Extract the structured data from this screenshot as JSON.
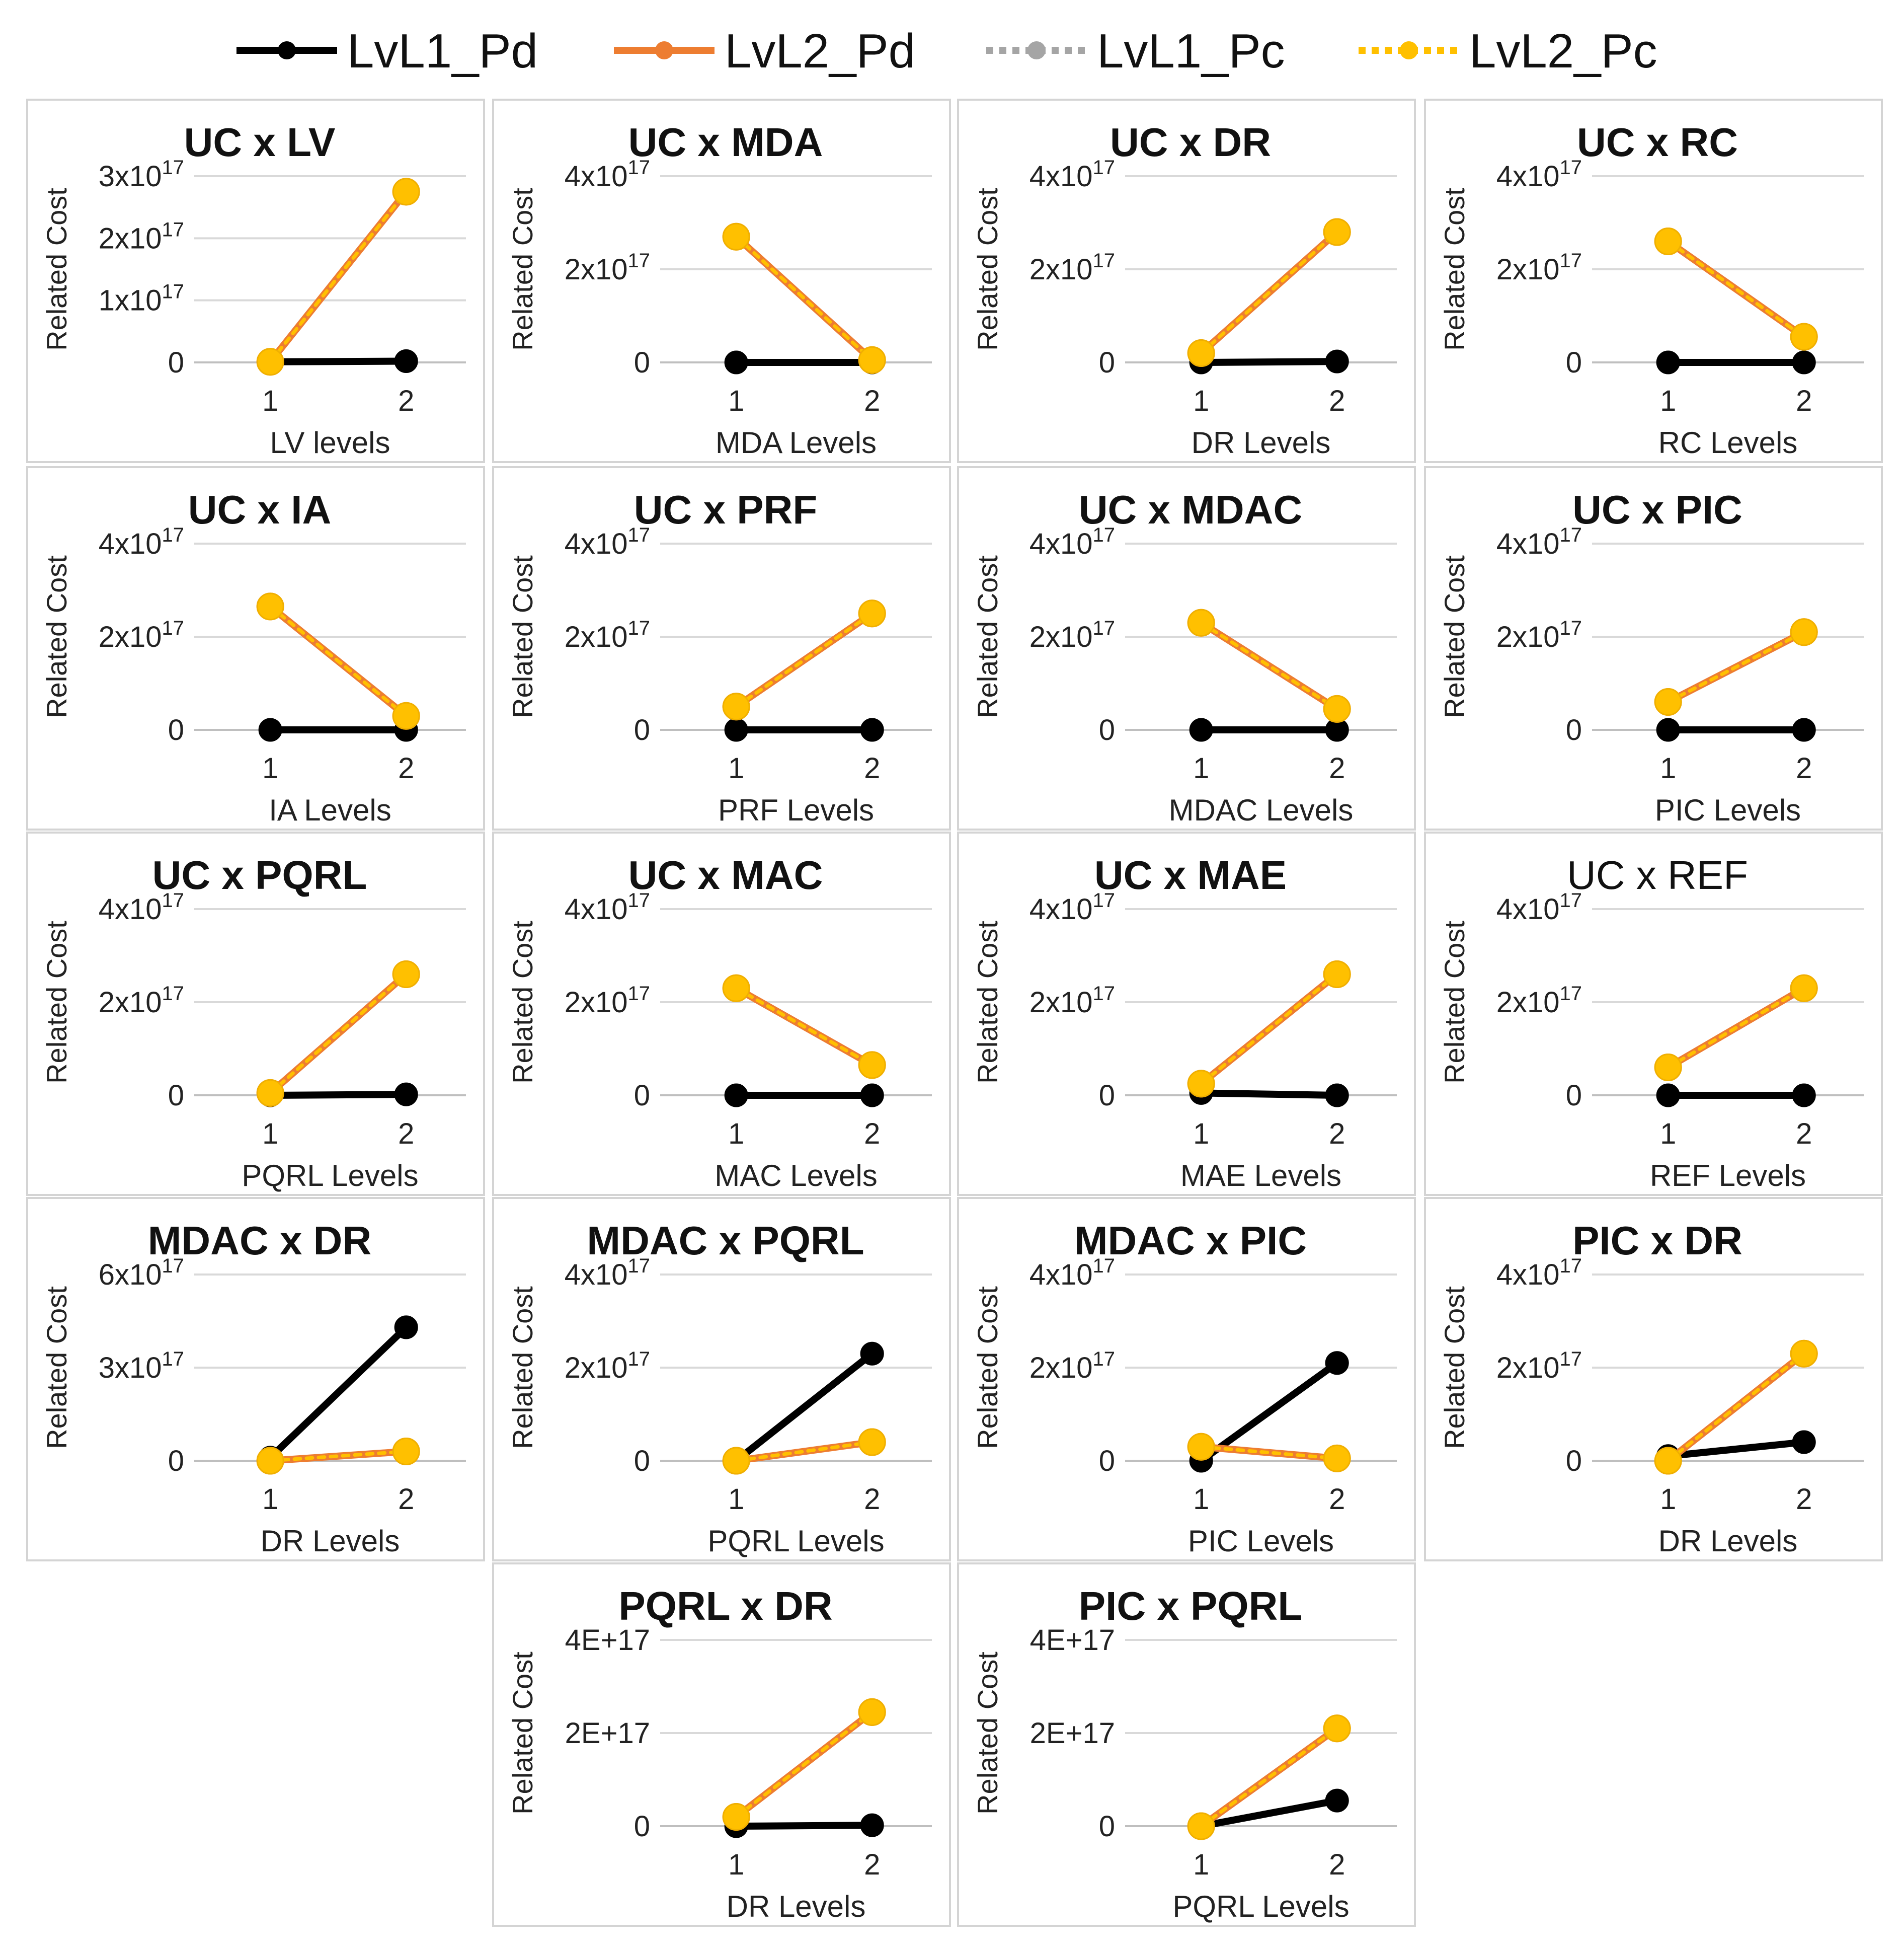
{
  "colors": {
    "lvl1_pd": "#000000",
    "lvl2_pd": "#ED7D31",
    "lvl1_pc": "#A5A5A5",
    "lvl2_pc": "#FFC000",
    "gridline": "#d9d9d9"
  },
  "chart_data": {
    "type": "line",
    "legend": {
      "position": "top",
      "entries": [
        {
          "key": "lvl1_pd",
          "label": "LvL1_Pd",
          "style": "solid"
        },
        {
          "key": "lvl2_pd",
          "label": "LvL2_Pd",
          "style": "solid"
        },
        {
          "key": "lvl1_pc",
          "label": "LvL1_Pc",
          "style": "dotted"
        },
        {
          "key": "lvl2_pc",
          "label": "LvL2_Pc",
          "style": "dotted"
        }
      ]
    },
    "charts": [
      {
        "title": "UC x LV",
        "xlabel": "LV levels",
        "ylabel": "Related Cost",
        "categories": [
          "1",
          "2"
        ],
        "ylim": [
          0,
          3e+17
        ],
        "yticks": [
          "0",
          "1x10^17",
          "2x10^17",
          "3x10^17"
        ],
        "series": {
          "lvl1_pd": [
            1000000000000000.0,
            2000000000000000.0
          ],
          "lvl2_pd": [
            1000000000000000.0,
            2.75e+17
          ],
          "lvl1_pc": [
            1000000000000000.0,
            2000000000000000.0
          ],
          "lvl2_pc": [
            1000000000000000.0,
            2.75e+17
          ]
        }
      },
      {
        "title": "UC x MDA",
        "xlabel": "MDA Levels",
        "ylabel": "Related Cost",
        "categories": [
          "1",
          "2"
        ],
        "ylim": [
          0,
          4e+17
        ],
        "yticks": [
          "0",
          "2x10^17",
          "4x10^17"
        ],
        "series": {
          "lvl1_pd": [
            0,
            0
          ],
          "lvl2_pd": [
            2.7e+17,
            5000000000000000.0
          ],
          "lvl1_pc": [
            0,
            0
          ],
          "lvl2_pc": [
            2.7e+17,
            5000000000000000.0
          ]
        }
      },
      {
        "title": "UC x DR",
        "xlabel": "DR Levels",
        "ylabel": "Related Cost",
        "categories": [
          "1",
          "2"
        ],
        "ylim": [
          0,
          4e+17
        ],
        "yticks": [
          "0",
          "2x10^17",
          "4x10^17"
        ],
        "series": {
          "lvl1_pd": [
            0,
            2000000000000000.0
          ],
          "lvl2_pd": [
            2e+16,
            2.8e+17
          ],
          "lvl1_pc": [
            0,
            2000000000000000.0
          ],
          "lvl2_pc": [
            2e+16,
            2.8e+17
          ]
        }
      },
      {
        "title": "UC x RC",
        "xlabel": "RC Levels",
        "ylabel": "Related Cost",
        "categories": [
          "1",
          "2"
        ],
        "ylim": [
          0,
          4e+17
        ],
        "yticks": [
          "0",
          "2x10^17",
          "4x10^17"
        ],
        "series": {
          "lvl1_pd": [
            0,
            0
          ],
          "lvl2_pd": [
            2.6e+17,
            5.5e+16
          ],
          "lvl1_pc": [
            0,
            0
          ],
          "lvl2_pc": [
            2.6e+17,
            5.5e+16
          ]
        }
      },
      {
        "title": "UC x IA",
        "xlabel": "IA Levels",
        "ylabel": "Related Cost",
        "categories": [
          "1",
          "2"
        ],
        "ylim": [
          0,
          4e+17
        ],
        "yticks": [
          "0",
          "2x10^17",
          "4x10^17"
        ],
        "series": {
          "lvl1_pd": [
            0,
            0
          ],
          "lvl2_pd": [
            2.65e+17,
            3e+16
          ],
          "lvl1_pc": [
            0,
            0
          ],
          "lvl2_pc": [
            2.65e+17,
            3e+16
          ]
        }
      },
      {
        "title": "UC x PRF",
        "xlabel": "PRF Levels",
        "ylabel": "Related Cost",
        "categories": [
          "1",
          "2"
        ],
        "ylim": [
          0,
          4e+17
        ],
        "yticks": [
          "0",
          "2x10^17",
          "4x10^17"
        ],
        "series": {
          "lvl1_pd": [
            0,
            0
          ],
          "lvl2_pd": [
            5e+16,
            2.5e+17
          ],
          "lvl1_pc": [
            0,
            0
          ],
          "lvl2_pc": [
            5e+16,
            2.5e+17
          ]
        }
      },
      {
        "title": "UC x MDAC",
        "xlabel": "MDAC Levels",
        "ylabel": "Related Cost",
        "categories": [
          "1",
          "2"
        ],
        "ylim": [
          0,
          4e+17
        ],
        "yticks": [
          "0",
          "2x10^17",
          "4x10^17"
        ],
        "series": {
          "lvl1_pd": [
            0,
            0
          ],
          "lvl2_pd": [
            2.3e+17,
            4.5e+16
          ],
          "lvl1_pc": [
            0,
            0
          ],
          "lvl2_pc": [
            2.3e+17,
            4.5e+16
          ]
        }
      },
      {
        "title": "UC x PIC",
        "xlabel": "PIC Levels",
        "ylabel": "Related Cost",
        "categories": [
          "1",
          "2"
        ],
        "ylim": [
          0,
          4e+17
        ],
        "yticks": [
          "0",
          "2x10^17",
          "4x10^17"
        ],
        "series": {
          "lvl1_pd": [
            0,
            0
          ],
          "lvl2_pd": [
            6e+16,
            2.1e+17
          ],
          "lvl1_pc": [
            0,
            0
          ],
          "lvl2_pc": [
            6e+16,
            2.1e+17
          ]
        }
      },
      {
        "title": "UC x PQRL",
        "xlabel": "PQRL Levels",
        "ylabel": "Related Cost",
        "categories": [
          "1",
          "2"
        ],
        "ylim": [
          0,
          4e+17
        ],
        "yticks": [
          "0",
          "2x10^17",
          "4x10^17"
        ],
        "series": {
          "lvl1_pd": [
            0,
            2000000000000000.0
          ],
          "lvl2_pd": [
            5000000000000000.0,
            2.6e+17
          ],
          "lvl1_pc": [
            0,
            2000000000000000.0
          ],
          "lvl2_pc": [
            5000000000000000.0,
            2.6e+17
          ]
        }
      },
      {
        "title": "UC x  MAC",
        "xlabel": "MAC Levels",
        "ylabel": "Related Cost",
        "categories": [
          "1",
          "2"
        ],
        "ylim": [
          0,
          4e+17
        ],
        "yticks": [
          "0",
          "2x10^17",
          "4x10^17"
        ],
        "series": {
          "lvl1_pd": [
            0,
            0
          ],
          "lvl2_pd": [
            2.3e+17,
            6.5e+16
          ],
          "lvl1_pc": [
            0,
            0
          ],
          "lvl2_pc": [
            2.3e+17,
            6.5e+16
          ]
        }
      },
      {
        "title": "UC x MAE",
        "xlabel": "MAE Levels",
        "ylabel": "Related Cost",
        "categories": [
          "1",
          "2"
        ],
        "ylim": [
          0,
          4e+17
        ],
        "yticks": [
          "0",
          "2x10^17",
          "4x10^17"
        ],
        "series": {
          "lvl1_pd": [
            5000000000000000.0,
            0
          ],
          "lvl2_pd": [
            2.5e+16,
            2.6e+17
          ],
          "lvl1_pc": [
            5000000000000000.0,
            0
          ],
          "lvl2_pc": [
            2.5e+16,
            2.6e+17
          ]
        }
      },
      {
        "title": "UC x REF",
        "title_weight": "normal",
        "xlabel": "REF Levels",
        "ylabel": "Related Cost",
        "categories": [
          "1",
          "2"
        ],
        "ylim": [
          0,
          4e+17
        ],
        "yticks": [
          "0",
          "2x10^17",
          "4x10^17"
        ],
        "series": {
          "lvl1_pd": [
            0,
            0
          ],
          "lvl2_pd": [
            6e+16,
            2.3e+17
          ],
          "lvl1_pc": [
            0,
            0
          ],
          "lvl2_pc": [
            6e+16,
            2.3e+17
          ]
        }
      },
      {
        "title": "MDAC x DR",
        "xlabel": "DR Levels",
        "ylabel": "Related Cost",
        "categories": [
          "1",
          "2"
        ],
        "ylim": [
          0,
          6e+17
        ],
        "yticks": [
          "0",
          "3x10^17",
          "6x10^17"
        ],
        "series": {
          "lvl1_pd": [
            1e+16,
            4.3e+17
          ],
          "lvl2_pd": [
            0,
            3e+16
          ],
          "lvl1_pc": [
            1e+16,
            4.3e+17
          ],
          "lvl2_pc": [
            0,
            3e+16
          ]
        }
      },
      {
        "title": "MDAC x PQRL",
        "xlabel": "PQRL Levels",
        "ylabel": "Related Cost",
        "categories": [
          "1",
          "2"
        ],
        "ylim": [
          0,
          4e+17
        ],
        "yticks": [
          "0",
          "2x10^17",
          "4x10^17"
        ],
        "series": {
          "lvl1_pd": [
            0,
            2.3e+17
          ],
          "lvl2_pd": [
            0,
            4e+16
          ],
          "lvl1_pc": [
            0,
            2.3e+17
          ],
          "lvl2_pc": [
            0,
            4e+16
          ]
        }
      },
      {
        "title": "MDAC x PIC",
        "xlabel": "PIC Levels",
        "ylabel": "Related Cost",
        "categories": [
          "1",
          "2"
        ],
        "ylim": [
          0,
          4e+17
        ],
        "yticks": [
          "0",
          "2x10^17",
          "4x10^17"
        ],
        "series": {
          "lvl1_pd": [
            0,
            2.1e+17
          ],
          "lvl2_pd": [
            3e+16,
            5000000000000000.0
          ],
          "lvl1_pc": [
            0,
            2.1e+17
          ],
          "lvl2_pc": [
            3e+16,
            5000000000000000.0
          ]
        }
      },
      {
        "title": "PIC x DR",
        "xlabel": "DR Levels",
        "ylabel": "Related Cost",
        "categories": [
          "1",
          "2"
        ],
        "ylim": [
          0,
          4e+17
        ],
        "yticks": [
          "0",
          "2x10^17",
          "4x10^17"
        ],
        "series": {
          "lvl1_pd": [
            1e+16,
            4e+16
          ],
          "lvl2_pd": [
            0,
            2.3e+17
          ],
          "lvl1_pc": [
            1e+16,
            4e+16
          ],
          "lvl2_pc": [
            0,
            2.3e+17
          ]
        }
      },
      {
        "title": "PQRL x DR",
        "xlabel": "DR Levels",
        "ylabel": "Related Cost",
        "categories": [
          "1",
          "2"
        ],
        "ylim": [
          0,
          4e+17
        ],
        "yticks": [
          "0",
          "2E+17",
          "4E+17"
        ],
        "series": {
          "lvl1_pd": [
            0,
            2000000000000000.0
          ],
          "lvl2_pd": [
            2e+16,
            2.45e+17
          ],
          "lvl1_pc": [
            0,
            2000000000000000.0
          ],
          "lvl2_pc": [
            2e+16,
            2.45e+17
          ]
        }
      },
      {
        "title": "PIC x PQRL",
        "xlabel": "PQRL Levels",
        "ylabel": "Related Cost",
        "categories": [
          "1",
          "2"
        ],
        "ylim": [
          0,
          4e+17
        ],
        "yticks": [
          "0",
          "2E+17",
          "4E+17"
        ],
        "series": {
          "lvl1_pd": [
            0,
            5.5e+16
          ],
          "lvl2_pd": [
            0,
            2.1e+17
          ],
          "lvl1_pc": [
            0,
            5.5e+16
          ],
          "lvl2_pc": [
            0,
            2.1e+17
          ]
        }
      }
    ]
  }
}
